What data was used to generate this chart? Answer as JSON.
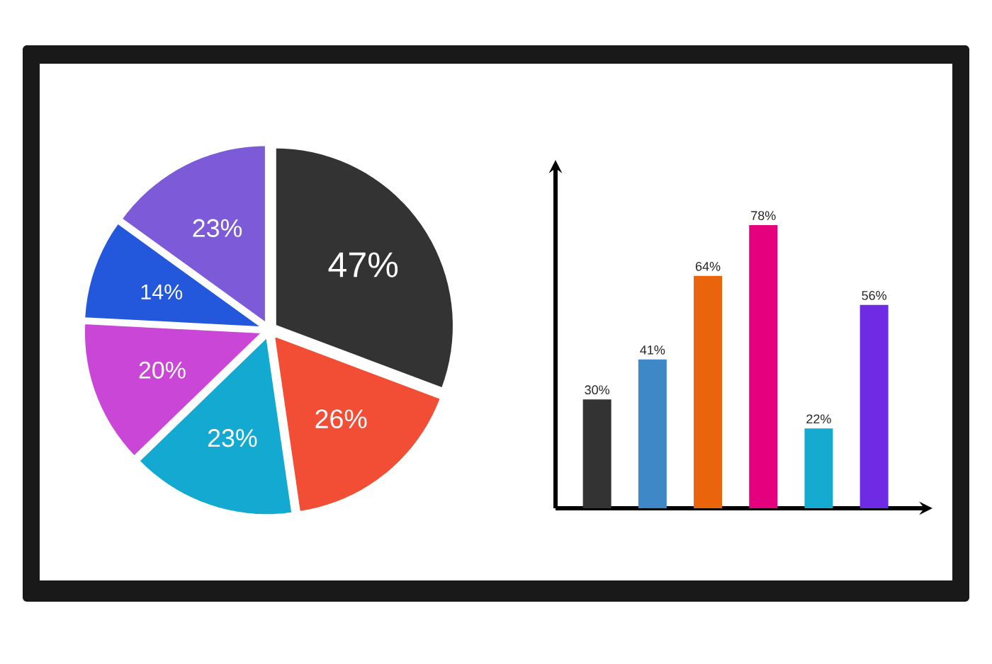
{
  "chart_data": [
    {
      "type": "pie",
      "categories": [
        null,
        null,
        null,
        null,
        null,
        null
      ],
      "values": [
        47,
        26,
        23,
        20,
        14,
        23
      ],
      "colors": [
        "#333333",
        "#f24e36",
        "#14a9d1",
        "#c946d6",
        "#2458dc",
        "#7c5ad8"
      ],
      "value_labels": [
        "47%",
        "26%",
        "23%",
        "20%",
        "14%",
        "23%"
      ]
    },
    {
      "type": "bar",
      "categories": [
        null,
        null,
        null,
        null,
        null,
        null
      ],
      "values": [
        30,
        41,
        64,
        78,
        22,
        56
      ],
      "colors": [
        "#333333",
        "#3f88c8",
        "#ea640c",
        "#e5007d",
        "#15abd1",
        "#6f2be3"
      ],
      "value_labels": [
        "30%",
        "41%",
        "64%",
        "78%",
        "22%",
        "56%"
      ]
    }
  ]
}
